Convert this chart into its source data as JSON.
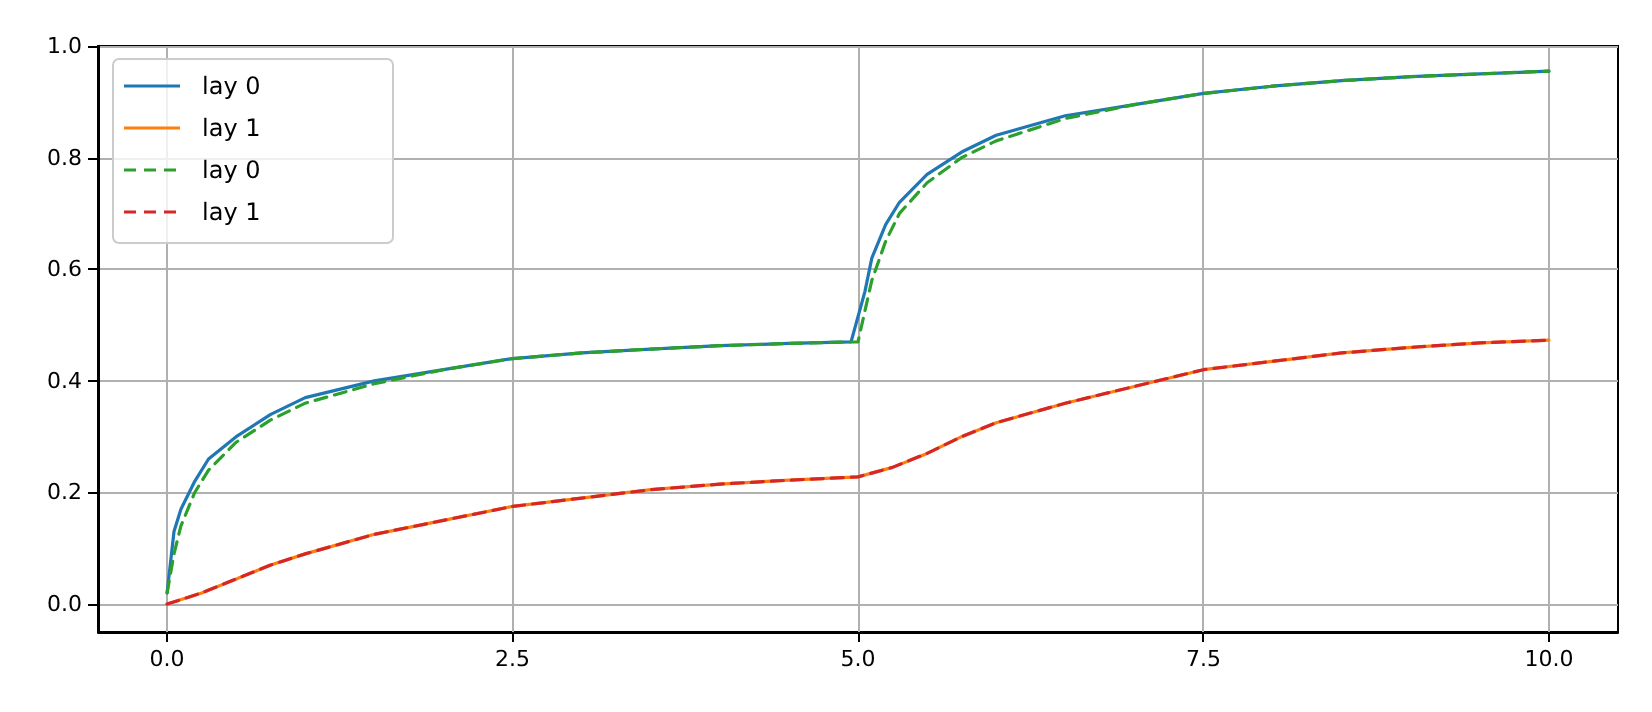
{
  "chart_data": {
    "type": "line",
    "legend": "top left",
    "grid": true,
    "marker": "none",
    "xlim": [
      -0.5,
      10.5
    ],
    "xticks": [
      {
        "value": 0,
        "label": "0.0"
      },
      {
        "value": 2.5,
        "label": "2.5"
      },
      {
        "value": 5,
        "label": "5.0"
      },
      {
        "value": 7.5,
        "label": "7.5"
      },
      {
        "value": 10,
        "label": "10.0"
      }
    ],
    "ylim": [
      -0.05,
      1.0
    ],
    "yticks": [
      {
        "value": 0,
        "label": "0.0"
      },
      {
        "value": 0.2,
        "label": "0.2"
      },
      {
        "value": 0.4,
        "label": "0.4"
      },
      {
        "value": 0.6,
        "label": "0.6"
      },
      {
        "value": 0.8,
        "label": "0.8"
      },
      {
        "value": 1.0,
        "label": "1.0"
      }
    ],
    "series": [
      {
        "name": "lay 0",
        "color": "#1f77b4",
        "line_style": "solid",
        "x": [
          0,
          0.05,
          0.1,
          0.2,
          0.3,
          0.5,
          0.75,
          1,
          1.5,
          2,
          2.5,
          3,
          3.5,
          4,
          4.5,
          4.95,
          5.05,
          5.1,
          5.2,
          5.3,
          5.5,
          5.75,
          6,
          6.5,
          7,
          7.5,
          8,
          8.5,
          9,
          9.5,
          10
        ],
        "values": [
          0.02,
          0.13,
          0.17,
          0.22,
          0.26,
          0.3,
          0.34,
          0.37,
          0.4,
          0.42,
          0.44,
          0.45,
          0.457,
          0.463,
          0.467,
          0.47,
          0.56,
          0.62,
          0.68,
          0.72,
          0.77,
          0.81,
          0.84,
          0.875,
          0.895,
          0.915,
          0.928,
          0.938,
          0.945,
          0.95,
          0.955
        ]
      },
      {
        "name": "lay 1",
        "color": "#ff7f0e",
        "line_style": "solid",
        "x": [
          0,
          0.25,
          0.5,
          0.75,
          1,
          1.5,
          2,
          2.5,
          3,
          3.5,
          4,
          4.5,
          5,
          5.25,
          5.5,
          5.75,
          6,
          6.5,
          7,
          7.5,
          8,
          8.5,
          9,
          9.5,
          10
        ],
        "values": [
          0,
          0.02,
          0.045,
          0.07,
          0.09,
          0.125,
          0.15,
          0.175,
          0.19,
          0.205,
          0.215,
          0.222,
          0.228,
          0.245,
          0.27,
          0.3,
          0.325,
          0.36,
          0.39,
          0.42,
          0.435,
          0.45,
          0.46,
          0.468,
          0.473
        ]
      },
      {
        "name": "lay 0",
        "color": "#2ca02c",
        "line_style": "dashed",
        "x": [
          0,
          0.05,
          0.1,
          0.2,
          0.3,
          0.5,
          0.75,
          1,
          1.5,
          2,
          2.5,
          3,
          3.5,
          4,
          4.5,
          5,
          5.1,
          5.2,
          5.3,
          5.5,
          5.75,
          6,
          6.5,
          7,
          7.5,
          8,
          8.5,
          9,
          9.5,
          10
        ],
        "values": [
          0.02,
          0.09,
          0.14,
          0.2,
          0.24,
          0.29,
          0.33,
          0.36,
          0.395,
          0.42,
          0.44,
          0.45,
          0.457,
          0.463,
          0.467,
          0.47,
          0.58,
          0.65,
          0.7,
          0.755,
          0.8,
          0.83,
          0.87,
          0.895,
          0.915,
          0.928,
          0.938,
          0.945,
          0.95,
          0.955
        ]
      },
      {
        "name": "lay 1",
        "color": "#d62728",
        "line_style": "dashed",
        "x": [
          0,
          0.25,
          0.5,
          0.75,
          1,
          1.5,
          2,
          2.5,
          3,
          3.5,
          4,
          4.5,
          5,
          5.25,
          5.5,
          5.75,
          6,
          6.5,
          7,
          7.5,
          8,
          8.5,
          9,
          9.5,
          10
        ],
        "values": [
          0,
          0.02,
          0.045,
          0.07,
          0.09,
          0.125,
          0.15,
          0.175,
          0.19,
          0.205,
          0.215,
          0.222,
          0.228,
          0.245,
          0.27,
          0.3,
          0.325,
          0.36,
          0.39,
          0.42,
          0.435,
          0.45,
          0.46,
          0.468,
          0.473
        ]
      }
    ]
  }
}
